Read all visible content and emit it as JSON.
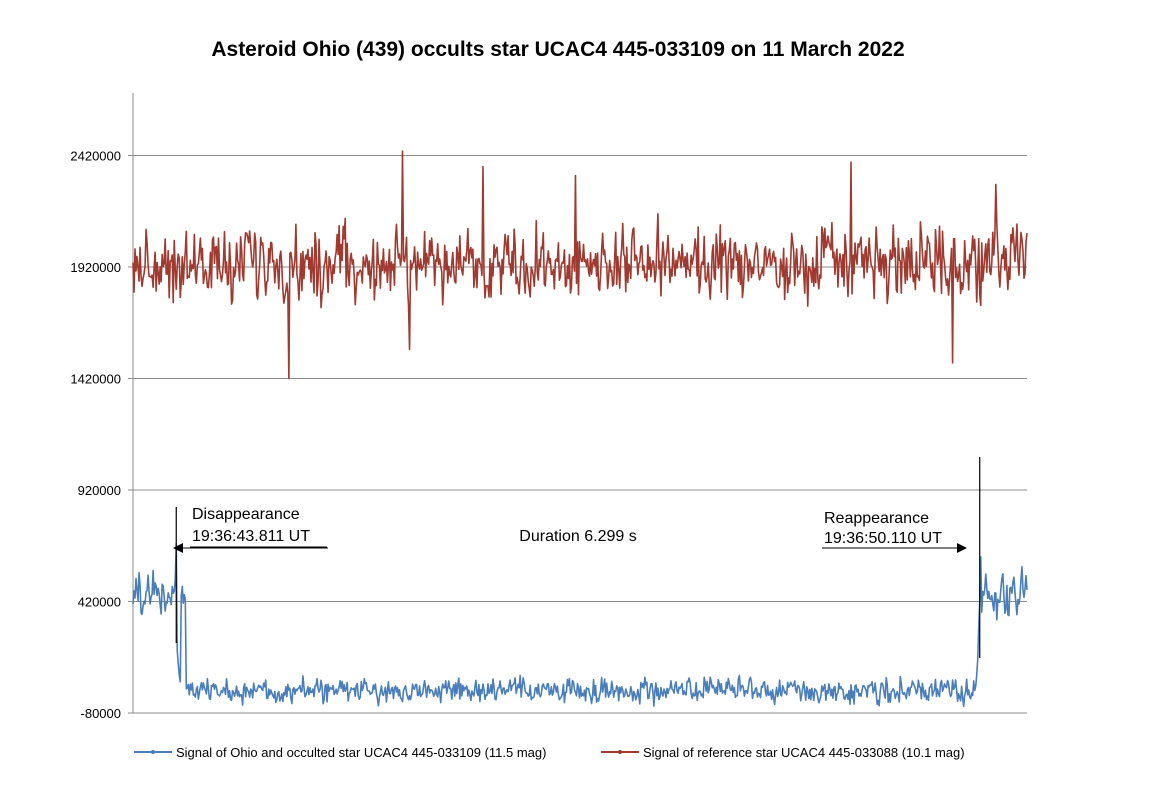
{
  "chart_data": {
    "type": "line",
    "title": "Asteroid Ohio (439) occults star UCAC4 445-033109 on 11 March 2022",
    "xlabel": "",
    "ylabel": "",
    "ylim": [
      -80000,
      2700000
    ],
    "yticks": [
      -80000,
      420000,
      920000,
      1420000,
      1920000,
      2420000
    ],
    "ytick_labels": [
      "-80000",
      "420000",
      "920000",
      "1420000",
      "1920000",
      "2420000"
    ],
    "grid": "horizontal",
    "legend_position": "bottom",
    "frames": 890,
    "series": [
      {
        "name": "Signal of Ohio and occulted star UCAC4 445-033109 (11.5 mag)",
        "color": "#4a7ebb",
        "segments": [
          {
            "from": 0,
            "to": 52,
            "base": 460000,
            "noise": 90000,
            "min": 290000,
            "max": 680000
          },
          {
            "from": 53,
            "to": 843,
            "base": 20000,
            "noise": 45000,
            "min": -60000,
            "max": 120000
          },
          {
            "from": 844,
            "to": 889,
            "base": 440000,
            "noise": 90000,
            "min": 270000,
            "max": 650000
          }
        ],
        "transitions": [
          {
            "index": 43,
            "value": 680000
          },
          {
            "index": 44,
            "value": 200000
          },
          {
            "index": 45,
            "value": 140000
          },
          {
            "index": 46,
            "value": 90000
          },
          {
            "index": 47,
            "value": 60000
          },
          {
            "index": 838,
            "value": 40000
          },
          {
            "index": 839,
            "value": 90000
          },
          {
            "index": 840,
            "value": 160000
          },
          {
            "index": 841,
            "value": 300000
          },
          {
            "index": 842,
            "value": 420000
          },
          {
            "index": 843,
            "value": 620000
          }
        ]
      },
      {
        "name": "Signal of reference star UCAC4 445-033088 (10.1 mag)",
        "color": "#a0392f",
        "segments": [
          {
            "from": 0,
            "to": 889,
            "base": 1930000,
            "noise": 130000,
            "min": 1580000,
            "max": 2300000
          }
        ],
        "spikes": [
          {
            "index": 155,
            "value": 1420000
          },
          {
            "index": 268,
            "value": 2440000
          },
          {
            "index": 275,
            "value": 1550000
          },
          {
            "index": 348,
            "value": 2370000
          },
          {
            "index": 440,
            "value": 2330000
          },
          {
            "index": 714,
            "value": 2390000
          },
          {
            "index": 815,
            "value": 1490000
          },
          {
            "index": 858,
            "value": 2290000
          }
        ]
      }
    ],
    "annotations": {
      "disappearance": {
        "label": "Disappearance",
        "time": "19:36:43.811 UT",
        "frame": 43
      },
      "reappearance": {
        "label": "Reappearance",
        "time": "19:36:50.110 UT",
        "frame": 842
      },
      "duration": "Duration 6.299 s"
    }
  }
}
